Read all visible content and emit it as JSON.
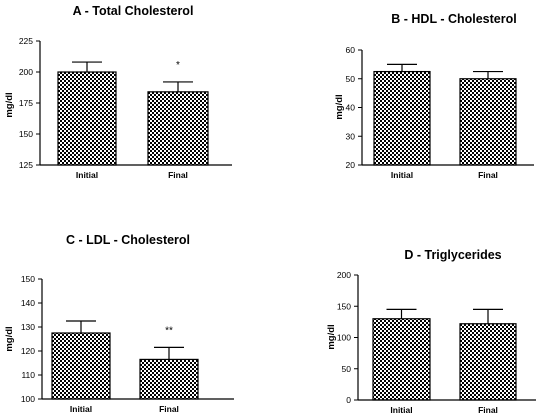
{
  "chart_data": [
    {
      "type": "bar",
      "title": "A  -  Total Cholesterol",
      "ylabel": "mg/dl",
      "categories": [
        "Initial",
        "Final"
      ],
      "values": [
        200,
        184
      ],
      "errors": [
        8,
        8
      ],
      "significance": [
        "",
        "*"
      ],
      "ylim": [
        125,
        225
      ],
      "yticks": [
        125,
        150,
        175,
        200,
        225
      ],
      "fill": "crosshatch"
    },
    {
      "type": "bar",
      "title": "B  -  HDL - Cholesterol",
      "ylabel": "mg/dl",
      "categories": [
        "Initial",
        "Final"
      ],
      "values": [
        52.5,
        50
      ],
      "errors": [
        2.5,
        2.5
      ],
      "significance": [
        "",
        ""
      ],
      "ylim": [
        20,
        60
      ],
      "yticks": [
        20,
        30,
        40,
        50,
        60
      ],
      "fill": "crosshatch"
    },
    {
      "type": "bar",
      "title": "C  -  LDL - Cholesterol",
      "ylabel": "mg/dl",
      "categories": [
        "Initial",
        "Final"
      ],
      "values": [
        127.5,
        116.5
      ],
      "errors": [
        5,
        5
      ],
      "significance": [
        "",
        "**"
      ],
      "ylim": [
        100,
        150
      ],
      "yticks": [
        100,
        110,
        120,
        130,
        140,
        150
      ],
      "fill": "crosshatch"
    },
    {
      "type": "bar",
      "title": "D  -  Triglycerides",
      "ylabel": "mg/dl",
      "categories": [
        "Initial",
        "Final"
      ],
      "values": [
        130,
        122
      ],
      "errors": [
        15,
        23
      ],
      "significance": [
        "",
        ""
      ],
      "ylim": [
        0,
        200
      ],
      "yticks": [
        0,
        50,
        100,
        150,
        200
      ],
      "fill": "crosshatch"
    }
  ]
}
